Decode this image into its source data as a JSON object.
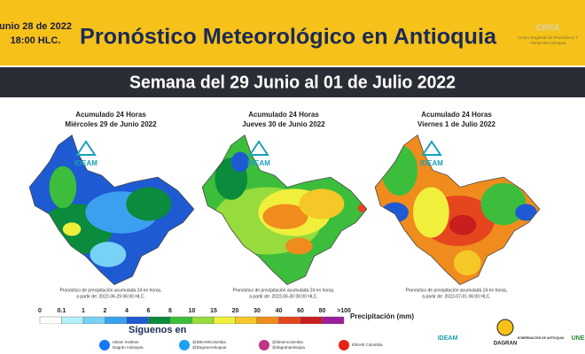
{
  "header": {
    "date": "unio 28 de 2022",
    "time": "18:00 HLC.",
    "title": "Pronóstico Meteorológico en Antioquia",
    "org": "CRFA",
    "org_sub": [
      "Centro Regional De Pronósticos Y",
      "Alertas De Antioquia"
    ]
  },
  "banner": "Semana del 29 Junio al 01 de Julio 2022",
  "maps": [
    {
      "title": "Acumulado 24 Horas",
      "subtitle": "Miércoles 29 de Junio 2022",
      "logo": "IDEAM",
      "note": [
        "Pronóstico de precipitación acumulada 24 en horas,",
        "a partir de: 2022-06-29 06:00 HLC."
      ]
    },
    {
      "title": "Acumulado 24 Horas",
      "subtitle": "Jueves 30 de Junio 2022",
      "logo": "IDEAM",
      "note": [
        "Pronóstico de precipitación acumulada 24 en horas,",
        "a partir de: 2022-06-30 06:00 HLC."
      ]
    },
    {
      "title": "Acumulado 24 Horas",
      "subtitle": "Viernes 1 de Julio 2022",
      "logo": "IDEAM",
      "note": [
        "Pronóstico de precipitación acumulada 24 en horas,",
        "a partir de: 2022-07-01 06:00 HLC."
      ]
    }
  ],
  "legend": {
    "labels": [
      "0",
      "0.1",
      "1",
      "2",
      "4",
      "6",
      "8",
      "10",
      "15",
      "20",
      "30",
      "40",
      "60",
      "80",
      ">100"
    ],
    "colors": [
      "#ffffff",
      "#b4f0fa",
      "#78d2f5",
      "#3ca0f0",
      "#1e5ad2",
      "#0a8c3c",
      "#3cbe3c",
      "#96dc3c",
      "#f0f03c",
      "#f5c828",
      "#f08c1e",
      "#e6461e",
      "#c81e1e",
      "#9b1e9b"
    ],
    "title": "Precipitación  (mm)"
  },
  "footer": {
    "follow": "Síguenos en",
    "social": [
      [
        "Ideam Instituto",
        "Dagran Antioquia"
      ],
      [
        "@IDEAMColombia",
        "@DagranAntioquia"
      ],
      [
        "@ideamcolombia",
        "@dagranantioquia"
      ],
      [
        "IDEAM Colombia"
      ]
    ],
    "logos": [
      "IDEAM",
      "DAGRAN",
      "GOBERNACIÓN DE ANTIOQUIA",
      "UNE"
    ]
  }
}
